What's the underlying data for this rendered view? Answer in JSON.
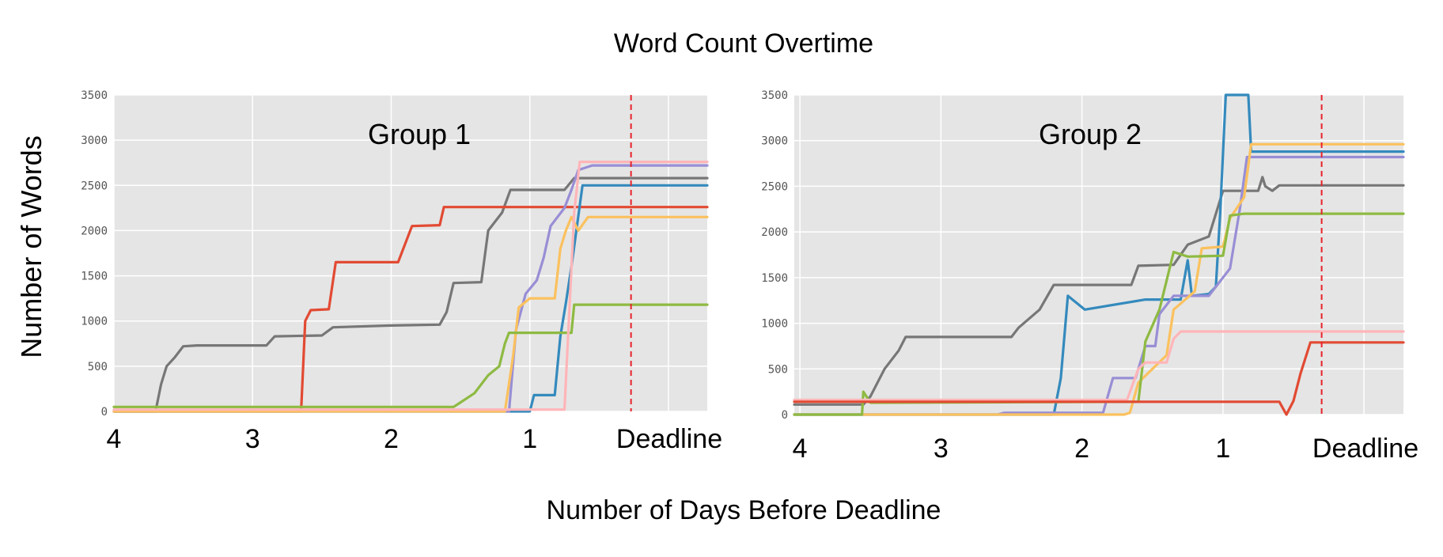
{
  "figure": {
    "title": "Word Count Overtime",
    "ylabel": "Number of Words",
    "xlabel": "Number of Days Before Deadline"
  },
  "colors": {
    "background": "#e5e5e5",
    "grid": "#ffffff",
    "deadline": "#e8232a",
    "gray": "#777777",
    "red": "#e24a33",
    "blue": "#348abd",
    "purple": "#988ed5",
    "yellow": "#fbc15e",
    "green": "#8eba42",
    "pink": "#ffb5b8"
  },
  "chart_data": [
    {
      "type": "line",
      "title": "Group 1",
      "xlabel": "",
      "ylabel": "",
      "x_tick_labels": [
        "4",
        "3",
        "2",
        "1",
        "Deadline"
      ],
      "x_ticks": [
        4,
        3,
        2,
        1,
        0
      ],
      "yticks": [
        0,
        500,
        1000,
        1500,
        2000,
        2500,
        3000,
        3500
      ],
      "xlim": [
        4,
        -0.28
      ],
      "ylim": [
        0,
        3500
      ],
      "grid": true,
      "deadline_x": 0.27,
      "series": [
        {
          "color": "gray",
          "points": [
            [
              4,
              0
            ],
            [
              3.7,
              0
            ],
            [
              3.66,
              300
            ],
            [
              3.62,
              500
            ],
            [
              3.56,
              600
            ],
            [
              3.5,
              720
            ],
            [
              3.4,
              730
            ],
            [
              2.9,
              730
            ],
            [
              2.84,
              830
            ],
            [
              2.5,
              840
            ],
            [
              2.42,
              930
            ],
            [
              2.0,
              950
            ],
            [
              1.65,
              960
            ],
            [
              1.6,
              1100
            ],
            [
              1.55,
              1420
            ],
            [
              1.35,
              1430
            ],
            [
              1.3,
              2000
            ],
            [
              1.2,
              2200
            ],
            [
              1.14,
              2450
            ],
            [
              0.75,
              2450
            ],
            [
              0.68,
              2580
            ],
            [
              -0.28,
              2580
            ]
          ]
        },
        {
          "color": "red",
          "points": [
            [
              4,
              0
            ],
            [
              2.65,
              0
            ],
            [
              2.62,
              1000
            ],
            [
              2.58,
              1120
            ],
            [
              2.45,
              1130
            ],
            [
              2.4,
              1650
            ],
            [
              1.95,
              1650
            ],
            [
              1.9,
              1850
            ],
            [
              1.85,
              2050
            ],
            [
              1.65,
              2060
            ],
            [
              1.62,
              2260
            ],
            [
              -0.28,
              2260
            ]
          ]
        },
        {
          "color": "blue",
          "points": [
            [
              4,
              0
            ],
            [
              1.0,
              0
            ],
            [
              0.97,
              180
            ],
            [
              0.82,
              180
            ],
            [
              0.78,
              830
            ],
            [
              0.74,
              1200
            ],
            [
              0.7,
              1600
            ],
            [
              0.62,
              2500
            ],
            [
              -0.28,
              2500
            ]
          ]
        },
        {
          "color": "purple",
          "points": [
            [
              4,
              0
            ],
            [
              1.15,
              0
            ],
            [
              1.1,
              900
            ],
            [
              1.03,
              1300
            ],
            [
              0.95,
              1450
            ],
            [
              0.9,
              1700
            ],
            [
              0.85,
              2050
            ],
            [
              0.8,
              2150
            ],
            [
              0.75,
              2250
            ],
            [
              0.7,
              2450
            ],
            [
              0.65,
              2670
            ],
            [
              0.55,
              2720
            ],
            [
              -0.28,
              2720
            ]
          ]
        },
        {
          "color": "yellow",
          "points": [
            [
              4,
              0
            ],
            [
              1.18,
              0
            ],
            [
              1.12,
              620
            ],
            [
              1.08,
              1150
            ],
            [
              1.0,
              1250
            ],
            [
              0.82,
              1250
            ],
            [
              0.78,
              1800
            ],
            [
              0.74,
              2000
            ],
            [
              0.7,
              2150
            ],
            [
              0.65,
              2000
            ],
            [
              0.58,
              2150
            ],
            [
              -0.28,
              2150
            ]
          ]
        },
        {
          "color": "green",
          "points": [
            [
              4,
              50
            ],
            [
              1.55,
              50
            ],
            [
              1.5,
              100
            ],
            [
              1.4,
              200
            ],
            [
              1.3,
              400
            ],
            [
              1.22,
              500
            ],
            [
              1.18,
              750
            ],
            [
              1.15,
              870
            ],
            [
              0.98,
              870
            ],
            [
              0.95,
              870
            ],
            [
              0.7,
              870
            ],
            [
              0.68,
              1180
            ],
            [
              -0.28,
              1180
            ]
          ]
        },
        {
          "color": "pink",
          "points": [
            [
              4,
              20
            ],
            [
              0.78,
              20
            ],
            [
              0.75,
              20
            ],
            [
              0.68,
              2200
            ],
            [
              0.64,
              2760
            ],
            [
              -0.28,
              2760
            ]
          ]
        }
      ]
    },
    {
      "type": "line",
      "title": "Group 2",
      "xlabel": "",
      "ylabel": "",
      "x_tick_labels": [
        "4",
        "3",
        "2",
        "1",
        "Deadline"
      ],
      "x_ticks": [
        4,
        3,
        2,
        1,
        0
      ],
      "yticks": [
        0,
        500,
        1000,
        1500,
        2000,
        2500,
        3000,
        3500
      ],
      "xlim": [
        4.04,
        -0.28
      ],
      "ylim": [
        0,
        3500
      ],
      "grid": true,
      "deadline_x": 0.3,
      "series": [
        {
          "color": "gray",
          "points": [
            [
              4.04,
              110
            ],
            [
              3.55,
              110
            ],
            [
              3.5,
              200
            ],
            [
              3.4,
              500
            ],
            [
              3.3,
              700
            ],
            [
              3.25,
              850
            ],
            [
              2.5,
              850
            ],
            [
              2.45,
              950
            ],
            [
              2.3,
              1150
            ],
            [
              2.2,
              1420
            ],
            [
              1.65,
              1420
            ],
            [
              1.6,
              1630
            ],
            [
              1.35,
              1640
            ],
            [
              1.25,
              1860
            ],
            [
              1.1,
              1950
            ],
            [
              1.0,
              2450
            ],
            [
              0.75,
              2450
            ],
            [
              0.72,
              2600
            ],
            [
              0.7,
              2500
            ],
            [
              0.65,
              2450
            ],
            [
              0.6,
              2510
            ],
            [
              -0.28,
              2510
            ]
          ]
        },
        {
          "color": "blue",
          "points": [
            [
              4.04,
              0
            ],
            [
              2.2,
              0
            ],
            [
              2.15,
              400
            ],
            [
              2.1,
              1300
            ],
            [
              1.98,
              1150
            ],
            [
              1.55,
              1260
            ],
            [
              1.3,
              1260
            ],
            [
              1.25,
              1690
            ],
            [
              1.22,
              1300
            ],
            [
              1.1,
              1320
            ],
            [
              1.05,
              1400
            ],
            [
              1.02,
              2200
            ],
            [
              0.98,
              3500
            ],
            [
              0.82,
              3500
            ],
            [
              0.8,
              2880
            ],
            [
              -0.28,
              2880
            ]
          ]
        },
        {
          "color": "purple",
          "points": [
            [
              4.04,
              0
            ],
            [
              2.6,
              0
            ],
            [
              2.55,
              20
            ],
            [
              1.85,
              20
            ],
            [
              1.78,
              400
            ],
            [
              1.62,
              400
            ],
            [
              1.55,
              750
            ],
            [
              1.48,
              750
            ],
            [
              1.45,
              1100
            ],
            [
              1.35,
              1300
            ],
            [
              1.1,
              1300
            ],
            [
              0.95,
              1600
            ],
            [
              0.88,
              2250
            ],
            [
              0.83,
              2820
            ],
            [
              -0.28,
              2820
            ]
          ]
        },
        {
          "color": "yellow",
          "points": [
            [
              4.04,
              0
            ],
            [
              1.7,
              0
            ],
            [
              1.66,
              20
            ],
            [
              1.6,
              350
            ],
            [
              1.5,
              500
            ],
            [
              1.4,
              650
            ],
            [
              1.35,
              1150
            ],
            [
              1.2,
              1350
            ],
            [
              1.15,
              1820
            ],
            [
              1.0,
              1840
            ],
            [
              0.95,
              2150
            ],
            [
              0.85,
              2380
            ],
            [
              0.8,
              2960
            ],
            [
              -0.28,
              2960
            ]
          ]
        },
        {
          "color": "green",
          "points": [
            [
              4.04,
              0
            ],
            [
              3.56,
              0
            ],
            [
              3.55,
              250
            ],
            [
              3.5,
              130
            ],
            [
              1.6,
              140
            ],
            [
              1.55,
              800
            ],
            [
              1.45,
              1150
            ],
            [
              1.35,
              1780
            ],
            [
              1.25,
              1730
            ],
            [
              1.0,
              1740
            ],
            [
              0.95,
              2180
            ],
            [
              0.85,
              2200
            ],
            [
              -0.28,
              2200
            ]
          ]
        },
        {
          "color": "pink",
          "points": [
            [
              4.04,
              160
            ],
            [
              1.68,
              160
            ],
            [
              1.6,
              500
            ],
            [
              1.55,
              570
            ],
            [
              1.4,
              570
            ],
            [
              1.35,
              830
            ],
            [
              1.3,
              910
            ],
            [
              -0.28,
              910
            ]
          ]
        },
        {
          "color": "red",
          "points": [
            [
              4.04,
              140
            ],
            [
              0.6,
              140
            ],
            [
              0.55,
              0
            ],
            [
              0.5,
              150
            ],
            [
              0.45,
              450
            ],
            [
              0.38,
              790
            ],
            [
              -0.28,
              790
            ]
          ]
        }
      ]
    }
  ]
}
